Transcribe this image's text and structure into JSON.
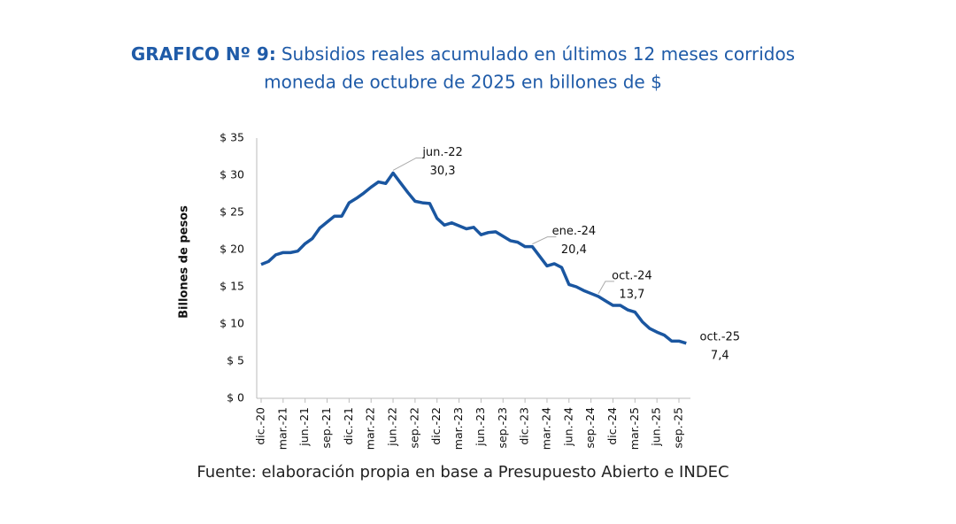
{
  "chart_data": {
    "type": "line",
    "title_prefix": "GRAFICO Nº 9:",
    "title": "Subsidios reales acumulado en últimos 12 meses corridos",
    "subtitle": "moneda de octubre de 2025 en billones de $",
    "y_label": "Billones de pesos",
    "source": "Fuente: elaboración propia en base a Presupuesto Abierto e INDEC",
    "categories": [
      "dic.-20",
      null,
      null,
      "mar.-21",
      null,
      null,
      "jun.-21",
      null,
      null,
      "sep.-21",
      null,
      null,
      "dic.-21",
      null,
      null,
      "mar.-22",
      null,
      null,
      "jun.-22",
      null,
      null,
      "sep.-22",
      null,
      null,
      "dic.-22",
      null,
      null,
      "mar.-23",
      null,
      null,
      "jun.-23",
      null,
      null,
      "sep.-23",
      null,
      null,
      "dic.-23",
      null,
      null,
      "mar.-24",
      null,
      null,
      "jun.-24",
      null,
      null,
      "sep.-24",
      null,
      null,
      "dic.-24",
      null,
      null,
      "mar.-25",
      null,
      null,
      "jun.-25",
      null,
      null,
      "sep.-25",
      null
    ],
    "series": [
      {
        "name": "Subsidios reales",
        "color": "#1a56a0",
        "values": [
          18.0,
          18.4,
          19.3,
          19.6,
          19.6,
          19.8,
          20.8,
          21.5,
          22.9,
          23.7,
          24.5,
          24.5,
          26.3,
          26.9,
          27.6,
          28.4,
          29.1,
          28.9,
          30.3,
          29.0,
          27.7,
          26.5,
          26.3,
          26.2,
          24.2,
          23.3,
          23.6,
          23.2,
          22.8,
          23.0,
          22.0,
          22.3,
          22.4,
          21.8,
          21.2,
          21.0,
          20.4,
          20.4,
          19.1,
          17.8,
          18.1,
          17.6,
          15.3,
          15.0,
          14.5,
          14.1,
          13.7,
          13.1,
          12.5,
          12.5,
          11.9,
          11.6,
          10.3,
          9.4,
          8.9,
          8.5,
          7.7,
          7.7,
          7.4
        ],
        "point_labels": [
          null,
          null,
          null,
          null,
          null,
          null,
          null,
          null,
          null,
          null,
          null,
          null,
          null,
          null,
          null,
          null,
          null,
          null,
          "jun.-22",
          null,
          null,
          null,
          null,
          null,
          null,
          null,
          null,
          null,
          null,
          null,
          null,
          null,
          null,
          null,
          null,
          null,
          null,
          "ene.-24",
          null,
          null,
          null,
          null,
          null,
          null,
          null,
          null,
          "oct.-24",
          null,
          null,
          null,
          null,
          null,
          null,
          null,
          null,
          null,
          null,
          null,
          "oct.-25"
        ],
        "value_labels": [
          null,
          null,
          null,
          null,
          null,
          null,
          null,
          null,
          null,
          null,
          null,
          null,
          null,
          null,
          null,
          null,
          null,
          null,
          "30,3",
          null,
          null,
          null,
          null,
          null,
          null,
          null,
          null,
          null,
          null,
          null,
          null,
          null,
          null,
          null,
          null,
          null,
          null,
          "20,4",
          null,
          null,
          null,
          null,
          null,
          null,
          null,
          null,
          "13,7",
          null,
          null,
          null,
          null,
          null,
          null,
          null,
          null,
          null,
          null,
          null,
          "7,4"
        ]
      }
    ],
    "ylim": [
      0,
      35
    ],
    "yticks": [
      {
        "value": 0,
        "label": "$ 0"
      },
      {
        "value": 5,
        "label": "$ 5"
      },
      {
        "value": 10,
        "label": "$ 10"
      },
      {
        "value": 15,
        "label": "$ 15"
      },
      {
        "value": 20,
        "label": "$ 20"
      },
      {
        "value": 25,
        "label": "$ 25"
      },
      {
        "value": 30,
        "label": "$ 30"
      },
      {
        "value": 35,
        "label": "$ 35"
      }
    ],
    "grid": false
  }
}
